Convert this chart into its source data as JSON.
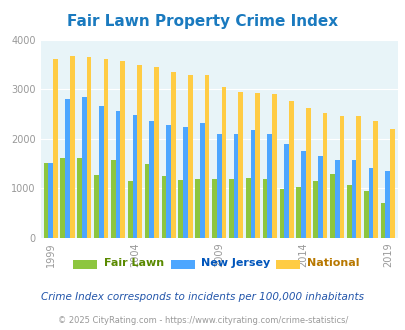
{
  "title": "Fair Lawn Property Crime Index",
  "years": [
    1999,
    2000,
    2001,
    2002,
    2003,
    2004,
    2005,
    2006,
    2007,
    2008,
    2009,
    2010,
    2011,
    2012,
    2013,
    2014,
    2015,
    2016,
    2017,
    2018,
    2019
  ],
  "fair_lawn": [
    1500,
    1600,
    1600,
    1270,
    1560,
    1140,
    1480,
    1250,
    1160,
    1190,
    1190,
    1190,
    1200,
    1180,
    980,
    1020,
    1140,
    1290,
    1060,
    950,
    700
  ],
  "new_jersey": [
    1500,
    2800,
    2850,
    2650,
    2560,
    2470,
    2350,
    2280,
    2230,
    2310,
    2090,
    2090,
    2170,
    2090,
    1900,
    1740,
    1640,
    1560,
    1560,
    1410,
    1350
  ],
  "national": [
    3610,
    3670,
    3650,
    3610,
    3560,
    3490,
    3440,
    3350,
    3290,
    3280,
    3050,
    2950,
    2920,
    2910,
    2750,
    2610,
    2510,
    2460,
    2450,
    2360,
    2190
  ],
  "fair_lawn_color": "#8dc63f",
  "new_jersey_color": "#4da6ff",
  "national_color": "#ffcc44",
  "bg_color": "#e8f4f8",
  "title_color": "#1a7abf",
  "ylim": [
    0,
    4000
  ],
  "yticks": [
    0,
    1000,
    2000,
    3000,
    4000
  ],
  "xtick_years": [
    1999,
    2004,
    2009,
    2014,
    2019
  ],
  "subtitle": "Crime Index corresponds to incidents per 100,000 inhabitants",
  "footer": "© 2025 CityRating.com - https://www.cityrating.com/crime-statistics/",
  "legend_labels": [
    "Fair Lawn",
    "New Jersey",
    "National"
  ],
  "legend_colors": [
    "#5a8a00",
    "#0055bb",
    "#b87800"
  ],
  "bar_width": 0.28
}
